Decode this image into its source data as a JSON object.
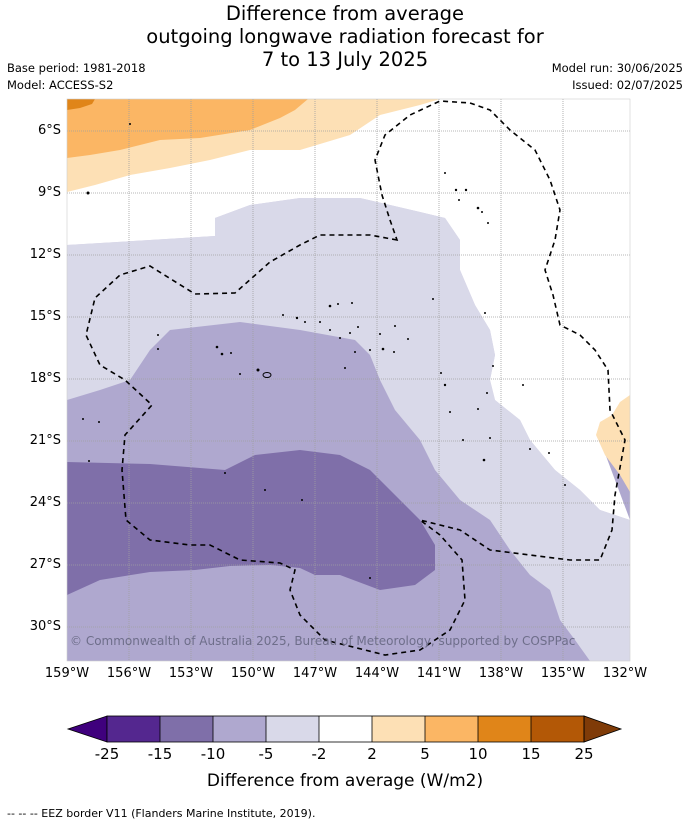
{
  "title": {
    "line1": "Difference from average",
    "line2": "outgoing longwave radiation forecast for",
    "line3": "7 to 13 July 2025"
  },
  "meta": {
    "base_period": "Base period: 1981-2018",
    "model": "Model: ACCESS-S2",
    "model_run": "Model run: 30/06/2025",
    "issued": "Issued: 02/07/2025"
  },
  "map": {
    "lat_labels": [
      "6°S",
      "9°S",
      "12°S",
      "15°S",
      "18°S",
      "21°S",
      "24°S",
      "27°S",
      "30°S"
    ],
    "lon_labels": [
      "159°W",
      "156°W",
      "153°W",
      "150°W",
      "147°W",
      "144°W",
      "141°W",
      "138°W",
      "135°W",
      "132°W"
    ],
    "copyright": "© Commonwealth of Australia 2025, Bureau of Meteorology, supported by COSPPac"
  },
  "colorbar": {
    "ticks": [
      "-25",
      "-15",
      "-10",
      "-5",
      "-2",
      "2",
      "5",
      "10",
      "15",
      "25"
    ],
    "colors": [
      "#3f007d",
      "#54278f",
      "#7f6fa9",
      "#afa8cf",
      "#d9d9e9",
      "#ffffff",
      "#fde0b5",
      "#fbb664",
      "#e08519",
      "#b35806",
      "#7f3b08"
    ],
    "title": "Difference from average (W/m2)"
  },
  "footer": "--  --  -- EEZ border V11 (Flanders Marine Institute, 2019)."
}
